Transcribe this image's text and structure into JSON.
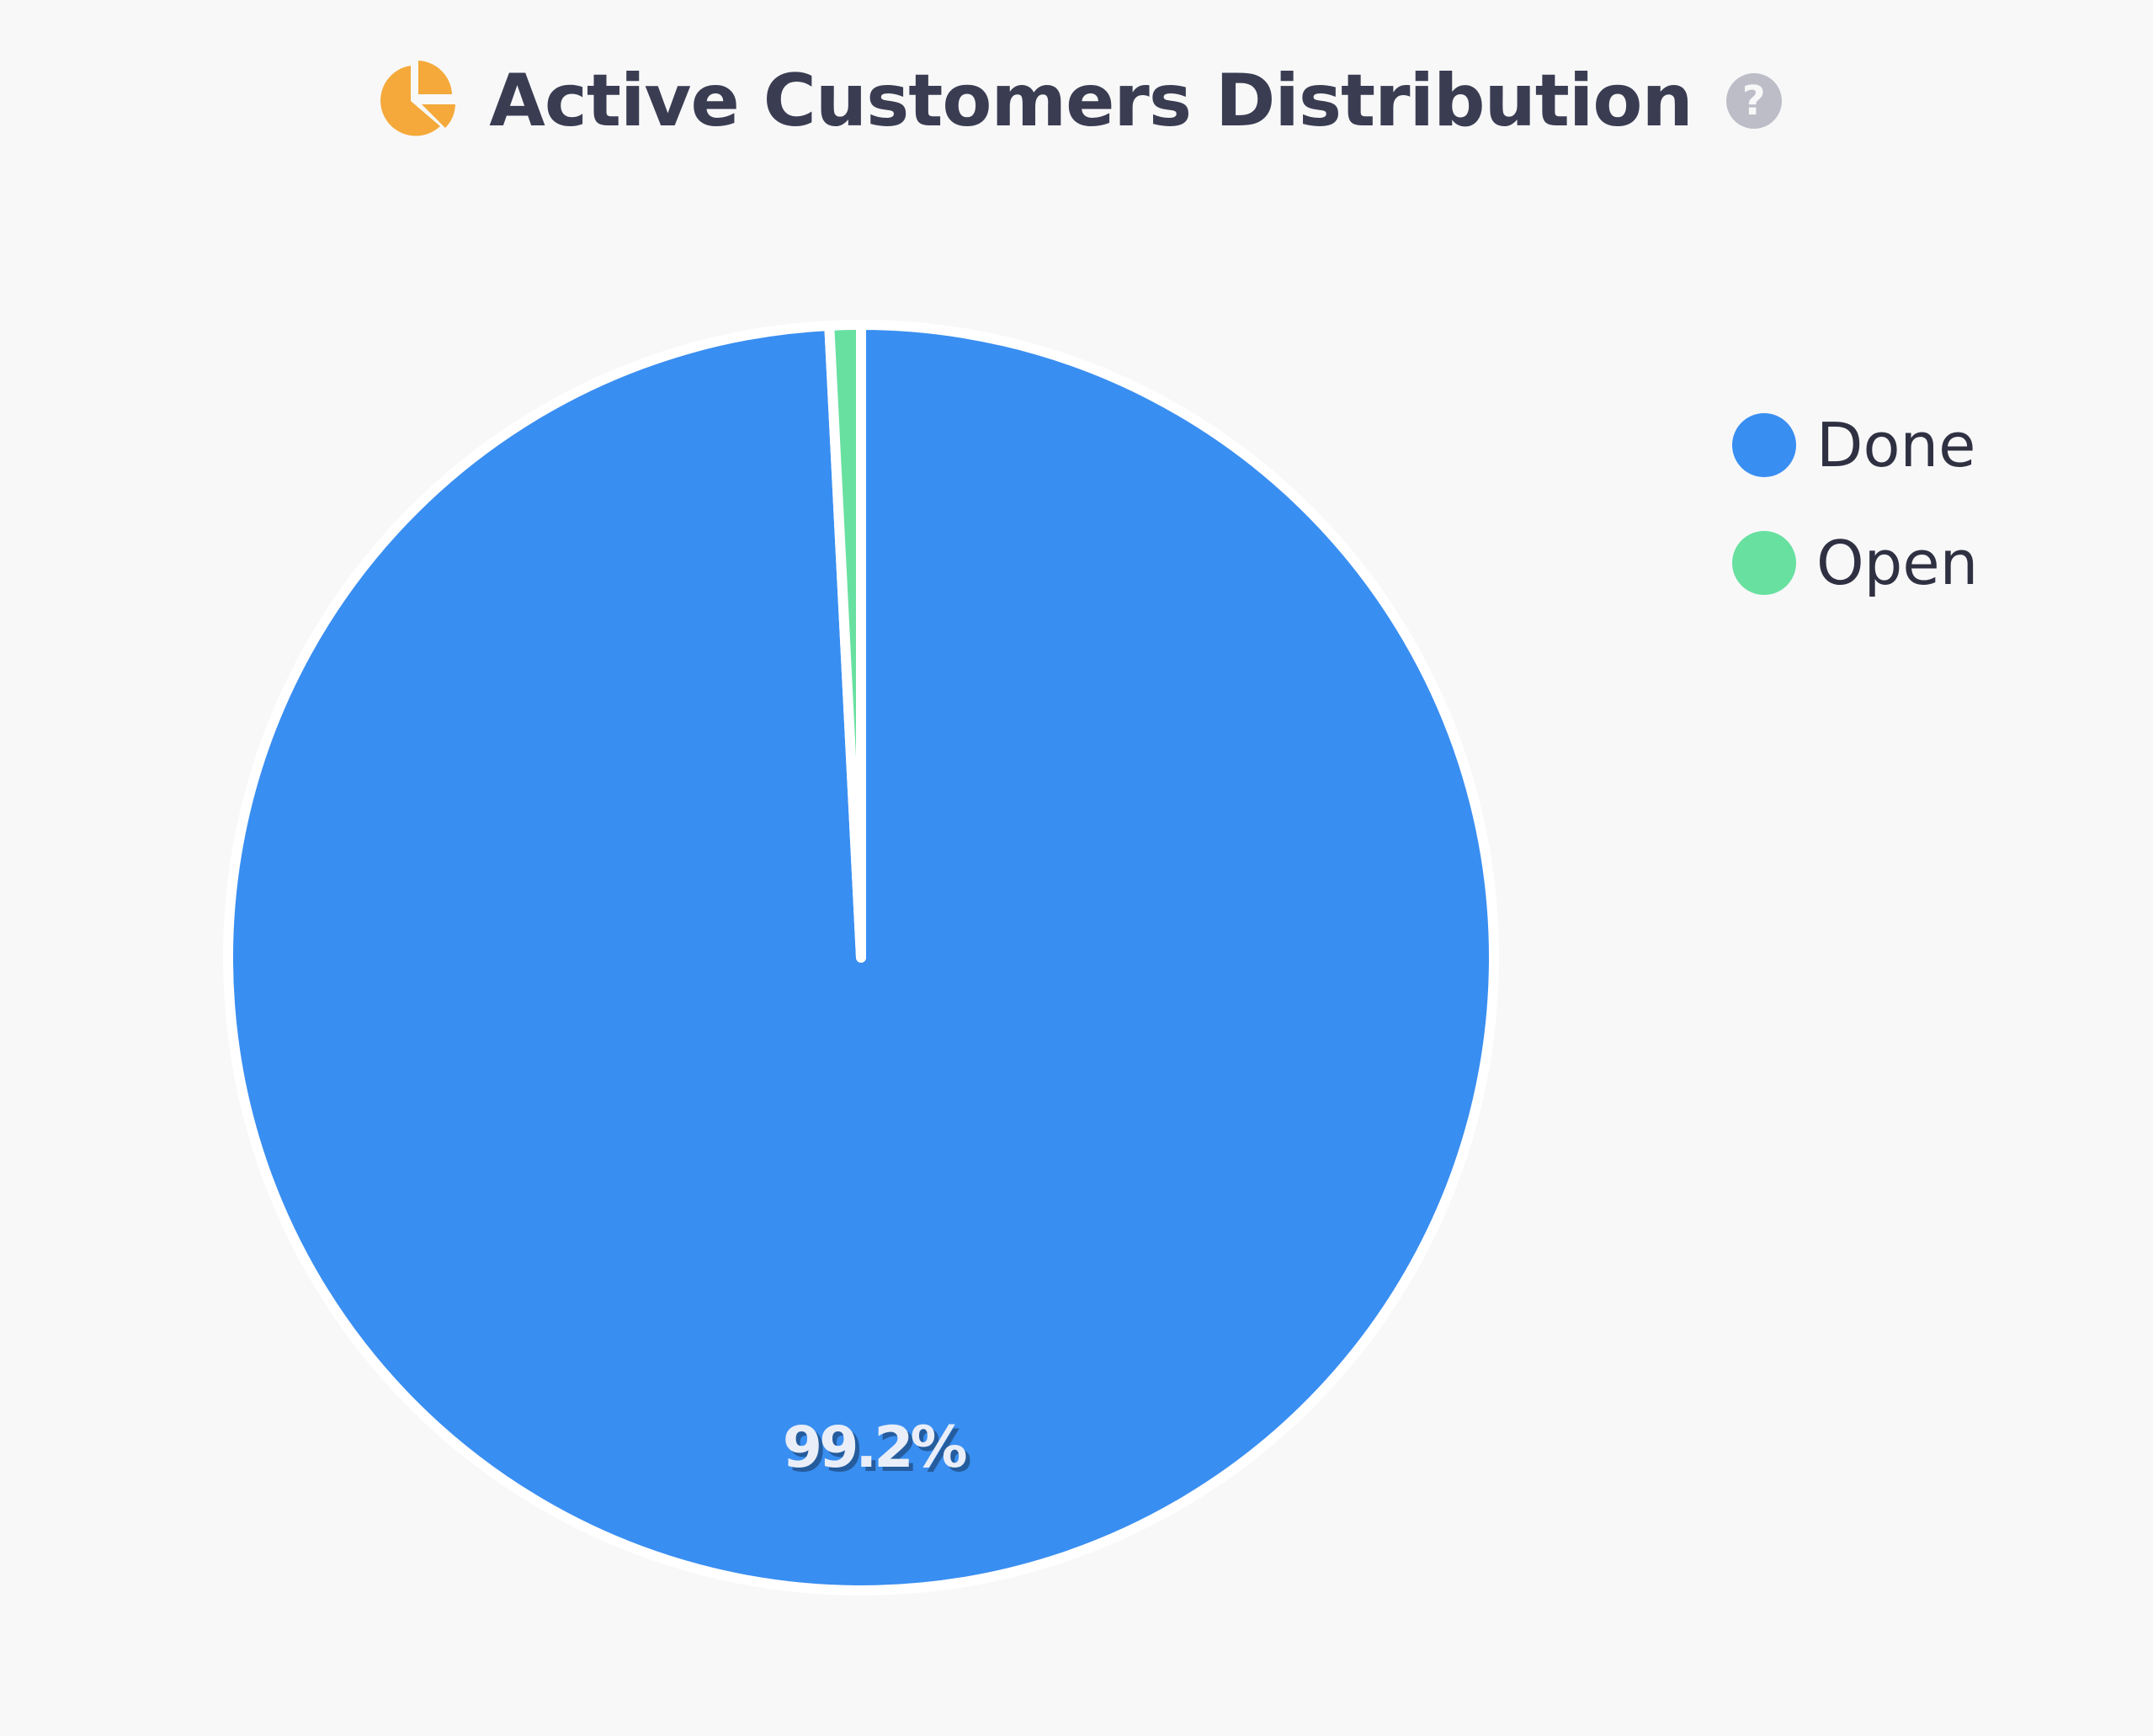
{
  "title": "Active Customers Distribution",
  "icons": {
    "title_icon": "pie-chart-icon",
    "help_icon": "question-circle-icon",
    "help_glyph": "?"
  },
  "colors": {
    "title_icon": "#f4a93a",
    "title_text": "#3a3d52",
    "help_icon": "#bdbdc8",
    "background": "#f8f8f9"
  },
  "chart_data": {
    "type": "pie",
    "title": "Active Customers Distribution",
    "categories": [
      "Done",
      "Open"
    ],
    "values": [
      99.2,
      0.8
    ],
    "colors": [
      "#398ef1",
      "#68e0a0"
    ],
    "data_labels": [
      "99.2%",
      ""
    ],
    "legend_position": "top-right",
    "start_angle": "12 o'clock, clockwise"
  },
  "legend": {
    "items": [
      {
        "label": "Done",
        "color": "#398ef1"
      },
      {
        "label": "Open",
        "color": "#68e0a0"
      }
    ]
  }
}
